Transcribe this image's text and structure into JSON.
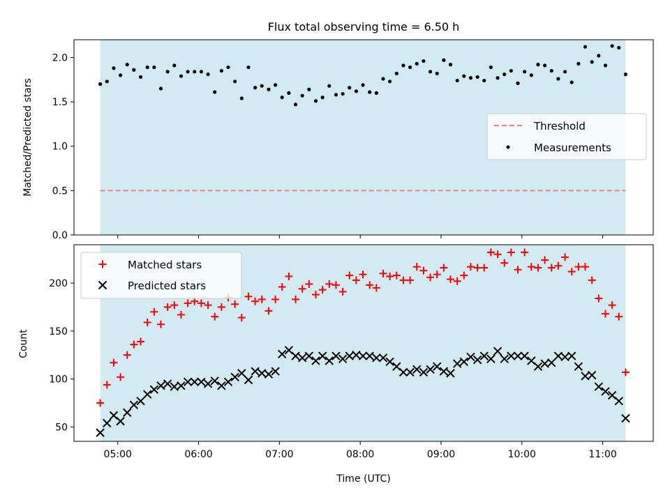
{
  "title": "Flux total observing time = 6.50 h",
  "colors": {
    "shade": "#add8e6",
    "threshold": "#f08080",
    "measurements": "#000000",
    "matched": "#ff0000",
    "predicted": "#000000"
  },
  "chart_data": [
    {
      "type": "scatter",
      "ylabel": "Matched/Predicted stars",
      "ylim": [
        0,
        2.2
      ],
      "yticks": [
        0.0,
        0.5,
        1.0,
        1.5,
        2.0
      ],
      "yticklabels": [
        "0.0",
        "0.5",
        "1.0",
        "1.5",
        "2.0"
      ],
      "shaded_range": [
        "04:47",
        "11:17"
      ],
      "threshold": 0.5,
      "legend": {
        "placement": "center-right",
        "entries": [
          "Threshold",
          "Measurements"
        ]
      },
      "series": [
        {
          "name": "Measurements",
          "x": [
            "04:47",
            "04:52",
            "04:57",
            "05:02",
            "05:07",
            "05:12",
            "05:17",
            "05:22",
            "05:27",
            "05:32",
            "05:37",
            "05:42",
            "05:47",
            "05:52",
            "05:57",
            "06:02",
            "06:07",
            "06:12",
            "06:17",
            "06:22",
            "06:27",
            "06:32",
            "06:37",
            "06:42",
            "06:47",
            "06:52",
            "06:57",
            "07:02",
            "07:07",
            "07:12",
            "07:17",
            "07:22",
            "07:27",
            "07:32",
            "07:37",
            "07:42",
            "07:47",
            "07:52",
            "07:57",
            "08:02",
            "08:07",
            "08:12",
            "08:17",
            "08:22",
            "08:27",
            "08:32",
            "08:37",
            "08:42",
            "08:47",
            "08:52",
            "08:57",
            "09:02",
            "09:07",
            "09:12",
            "09:17",
            "09:22",
            "09:27",
            "09:32",
            "09:37",
            "09:42",
            "09:47",
            "09:52",
            "09:57",
            "10:02",
            "10:07",
            "10:12",
            "10:17",
            "10:22",
            "10:27",
            "10:32",
            "10:37",
            "10:42",
            "10:47",
            "10:52",
            "10:57",
            "11:02",
            "11:07",
            "11:12",
            "11:17"
          ],
          "y": [
            1.7,
            1.73,
            1.88,
            1.8,
            1.92,
            1.86,
            1.78,
            1.89,
            1.89,
            1.65,
            1.84,
            1.91,
            1.79,
            1.84,
            1.84,
            1.84,
            1.81,
            1.61,
            1.85,
            1.89,
            1.73,
            1.54,
            1.89,
            1.66,
            1.68,
            1.64,
            1.69,
            1.55,
            1.6,
            1.47,
            1.57,
            1.64,
            1.51,
            1.55,
            1.68,
            1.58,
            1.59,
            1.66,
            1.62,
            1.69,
            1.61,
            1.6,
            1.76,
            1.73,
            1.82,
            1.91,
            1.89,
            1.93,
            1.96,
            1.84,
            1.82,
            1.97,
            1.92,
            1.74,
            1.79,
            1.77,
            1.78,
            1.74,
            1.89,
            1.77,
            1.81,
            1.85,
            1.71,
            1.84,
            1.8,
            1.92,
            1.91,
            1.85,
            1.76,
            1.84,
            1.72,
            1.93,
            2.12,
            1.95,
            2.02,
            1.91,
            2.13,
            2.11,
            1.81
          ]
        }
      ]
    },
    {
      "type": "scatter",
      "xlabel": "Time (UTC)",
      "ylabel": "Count",
      "ylim": [
        35,
        240
      ],
      "yticks": [
        50,
        100,
        150,
        200
      ],
      "yticklabels": [
        "50",
        "100",
        "150",
        "200"
      ],
      "xticks": [
        "05:00",
        "06:00",
        "07:00",
        "08:00",
        "09:00",
        "10:00",
        "11:00"
      ],
      "xticklabels": [
        "05:00",
        "06:00",
        "07:00",
        "08:00",
        "09:00",
        "10:00",
        "11:00"
      ],
      "shaded_range": [
        "04:47",
        "11:17"
      ],
      "legend": {
        "placement": "top-left",
        "entries": [
          "Matched stars",
          "Predicted stars"
        ]
      },
      "series": [
        {
          "name": "Matched stars",
          "x": [
            "04:47",
            "04:52",
            "04:57",
            "05:02",
            "05:07",
            "05:12",
            "05:17",
            "05:22",
            "05:27",
            "05:32",
            "05:37",
            "05:42",
            "05:47",
            "05:52",
            "05:57",
            "06:02",
            "06:07",
            "06:12",
            "06:17",
            "06:22",
            "06:27",
            "06:32",
            "06:37",
            "06:42",
            "06:47",
            "06:52",
            "06:57",
            "07:02",
            "07:07",
            "07:12",
            "07:17",
            "07:22",
            "07:27",
            "07:32",
            "07:37",
            "07:42",
            "07:47",
            "07:52",
            "07:57",
            "08:02",
            "08:07",
            "08:12",
            "08:17",
            "08:22",
            "08:27",
            "08:32",
            "08:37",
            "08:42",
            "08:47",
            "08:52",
            "08:57",
            "09:02",
            "09:07",
            "09:12",
            "09:17",
            "09:22",
            "09:27",
            "09:32",
            "09:37",
            "09:42",
            "09:47",
            "09:52",
            "09:57",
            "10:02",
            "10:07",
            "10:12",
            "10:17",
            "10:22",
            "10:27",
            "10:32",
            "10:37",
            "10:42",
            "10:47",
            "10:52",
            "10:57",
            "11:02",
            "11:07",
            "11:12",
            "11:17"
          ],
          "y": [
            75,
            94,
            117,
            102,
            125,
            136,
            139,
            159,
            170,
            157,
            175,
            177,
            167,
            179,
            181,
            179,
            177,
            165,
            175,
            185,
            178,
            164,
            186,
            181,
            183,
            171,
            183,
            196,
            207,
            183,
            194,
            199,
            188,
            193,
            199,
            198,
            191,
            208,
            203,
            209,
            198,
            195,
            210,
            207,
            208,
            203,
            203,
            217,
            213,
            206,
            209,
            216,
            204,
            202,
            208,
            217,
            216,
            216,
            232,
            230,
            221,
            232,
            214,
            232,
            217,
            216,
            224,
            216,
            218,
            227,
            212,
            217,
            217,
            203,
            184,
            168,
            177,
            165,
            107
          ]
        },
        {
          "name": "Predicted stars",
          "x": [
            "04:47",
            "04:52",
            "04:57",
            "05:02",
            "05:07",
            "05:12",
            "05:17",
            "05:22",
            "05:27",
            "05:32",
            "05:37",
            "05:42",
            "05:47",
            "05:52",
            "05:57",
            "06:02",
            "06:07",
            "06:12",
            "06:17",
            "06:22",
            "06:27",
            "06:32",
            "06:37",
            "06:42",
            "06:47",
            "06:52",
            "06:57",
            "07:02",
            "07:07",
            "07:12",
            "07:17",
            "07:22",
            "07:27",
            "07:32",
            "07:37",
            "07:42",
            "07:47",
            "07:52",
            "07:57",
            "08:02",
            "08:07",
            "08:12",
            "08:17",
            "08:22",
            "08:27",
            "08:32",
            "08:37",
            "08:42",
            "08:47",
            "08:52",
            "08:57",
            "09:02",
            "09:07",
            "09:12",
            "09:17",
            "09:22",
            "09:27",
            "09:32",
            "09:37",
            "09:42",
            "09:47",
            "09:52",
            "09:57",
            "10:02",
            "10:07",
            "10:12",
            "10:17",
            "10:22",
            "10:27",
            "10:32",
            "10:37",
            "10:42",
            "10:47",
            "10:52",
            "10:57",
            "11:02",
            "11:07",
            "11:12",
            "11:17"
          ],
          "y": [
            44,
            54,
            62,
            56,
            65,
            73,
            77,
            84,
            89,
            93,
            95,
            92,
            93,
            97,
            97,
            97,
            95,
            98,
            93,
            97,
            102,
            106,
            99,
            108,
            106,
            105,
            108,
            126,
            130,
            124,
            122,
            124,
            119,
            124,
            119,
            124,
            121,
            124,
            125,
            124,
            124,
            122,
            122,
            118,
            113,
            107,
            107,
            110,
            107,
            110,
            113,
            108,
            106,
            116,
            118,
            123,
            120,
            124,
            121,
            129,
            121,
            124,
            124,
            124,
            119,
            113,
            116,
            117,
            124,
            123,
            124,
            113,
            103,
            104,
            92,
            87,
            83,
            77,
            59
          ]
        }
      ]
    }
  ]
}
